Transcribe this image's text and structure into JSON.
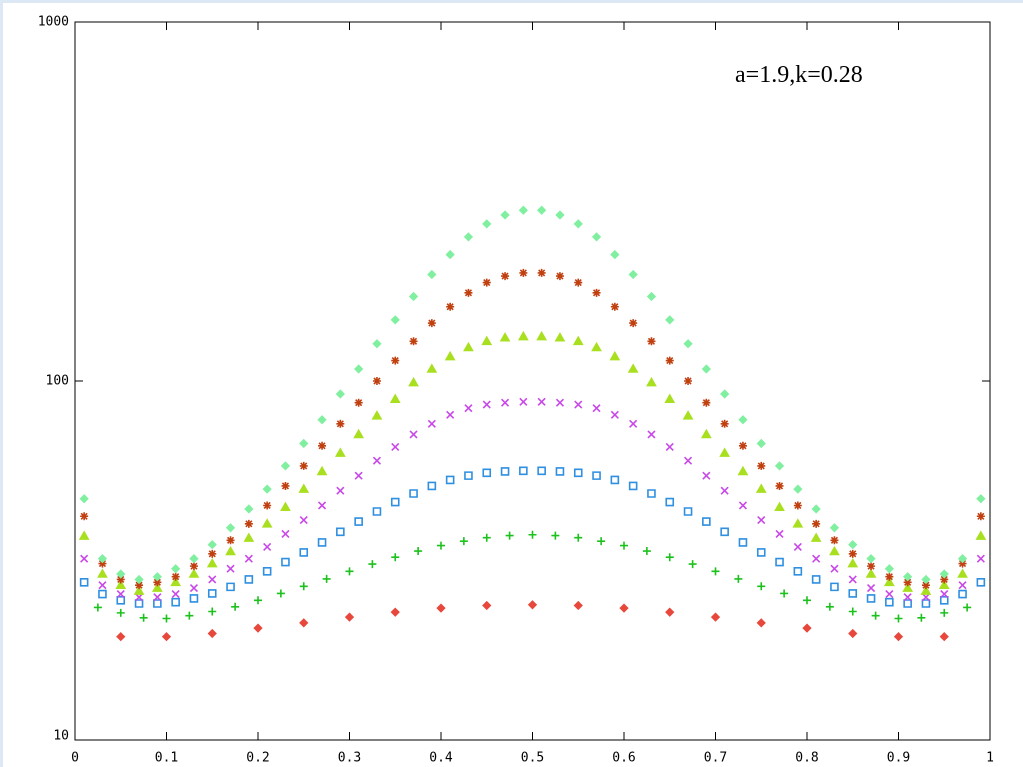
{
  "chart_data": {
    "type": "scatter",
    "annotation": "a=1.9,k=0.28",
    "xlim": [
      0,
      1
    ],
    "xticks": [
      0,
      0.1,
      0.2,
      0.3,
      0.4,
      0.5,
      0.6,
      0.7,
      0.8,
      0.9,
      1
    ],
    "ylim": [
      10,
      1000
    ],
    "yticks": [
      10,
      100,
      1000
    ],
    "log_y": true,
    "series": [
      {
        "color": "#e8483c",
        "marker": "diamond",
        "x": [
          0.05,
          0.1,
          0.15,
          0.2,
          0.25,
          0.3,
          0.35,
          0.4,
          0.45,
          0.5,
          0.55,
          0.6,
          0.65,
          0.7,
          0.75,
          0.8,
          0.85,
          0.9,
          0.95
        ],
        "values": [
          19.4,
          19.4,
          19.8,
          20.5,
          21.2,
          22,
          22.7,
          23.3,
          23.7,
          23.8,
          23.7,
          23.3,
          22.7,
          22,
          21.2,
          20.5,
          19.8,
          19.4,
          19.4
        ]
      },
      {
        "color": "#1cc21c",
        "marker": "plus",
        "x": [
          0.025,
          0.05,
          0.075,
          0.1,
          0.125,
          0.15,
          0.175,
          0.2,
          0.225,
          0.25,
          0.275,
          0.3,
          0.325,
          0.35,
          0.375,
          0.4,
          0.425,
          0.45,
          0.475,
          0.5,
          0.525,
          0.55,
          0.575,
          0.6,
          0.625,
          0.65,
          0.675,
          0.7,
          0.725,
          0.75,
          0.775,
          0.8,
          0.825,
          0.85,
          0.875,
          0.9,
          0.925,
          0.95,
          0.975
        ],
        "values": [
          23.4,
          22.6,
          21.9,
          21.8,
          22.2,
          22.8,
          23.5,
          24.5,
          25.6,
          26.8,
          28.1,
          29.5,
          30.9,
          32.3,
          33.6,
          34.8,
          35.8,
          36.6,
          37.1,
          37.3,
          37.1,
          36.6,
          35.8,
          34.8,
          33.6,
          32.3,
          30.9,
          29.5,
          28.1,
          26.8,
          25.6,
          24.5,
          23.5,
          22.8,
          22.2,
          21.8,
          21.9,
          22.6,
          23.4
        ]
      },
      {
        "color": "#2f8fe0",
        "marker": "square",
        "x": [
          0.01,
          0.03,
          0.05,
          0.07,
          0.09,
          0.11,
          0.13,
          0.15,
          0.17,
          0.19,
          0.21,
          0.23,
          0.25,
          0.27,
          0.29,
          0.31,
          0.33,
          0.35,
          0.37,
          0.39,
          0.41,
          0.43,
          0.45,
          0.47,
          0.49,
          0.51,
          0.53,
          0.55,
          0.57,
          0.59,
          0.61,
          0.63,
          0.65,
          0.67,
          0.69,
          0.71,
          0.73,
          0.75,
          0.77,
          0.79,
          0.81,
          0.83,
          0.85,
          0.87,
          0.89,
          0.91,
          0.93,
          0.95,
          0.97,
          0.99
        ],
        "values": [
          27.5,
          25.5,
          24.5,
          24,
          24,
          24.2,
          24.8,
          25.6,
          26.7,
          28,
          29.5,
          31.3,
          33.3,
          35.5,
          38,
          40.6,
          43.3,
          46,
          48.6,
          51,
          53,
          54.5,
          55.5,
          56,
          56.2,
          56.2,
          56,
          55.5,
          54.5,
          53,
          51,
          48.6,
          46,
          43.3,
          40.6,
          38,
          35.5,
          33.3,
          31.3,
          29.5,
          28,
          26.7,
          25.6,
          24.8,
          24.2,
          24,
          24,
          24.5,
          25.5,
          27.5
        ]
      },
      {
        "color": "#c848e8",
        "marker": "cross",
        "x": [
          0.01,
          0.03,
          0.05,
          0.07,
          0.09,
          0.11,
          0.13,
          0.15,
          0.17,
          0.19,
          0.21,
          0.23,
          0.25,
          0.27,
          0.29,
          0.31,
          0.33,
          0.35,
          0.37,
          0.39,
          0.41,
          0.43,
          0.45,
          0.47,
          0.49,
          0.51,
          0.53,
          0.55,
          0.57,
          0.59,
          0.61,
          0.63,
          0.65,
          0.67,
          0.69,
          0.71,
          0.73,
          0.75,
          0.77,
          0.79,
          0.81,
          0.83,
          0.85,
          0.87,
          0.89,
          0.91,
          0.93,
          0.95,
          0.97,
          0.99
        ],
        "values": [
          32,
          27,
          25.5,
          25,
          25,
          25.5,
          26.5,
          28,
          30,
          32,
          34.5,
          37.5,
          41,
          45,
          49.5,
          54.5,
          60,
          65.5,
          71,
          76,
          80.5,
          84,
          86,
          87,
          87.5,
          87.5,
          87,
          86,
          84,
          80.5,
          76,
          71,
          65.5,
          60,
          54.5,
          49.5,
          45,
          41,
          37.5,
          34.5,
          32,
          30,
          28,
          26.5,
          25.5,
          25,
          25,
          25.5,
          27,
          32
        ]
      },
      {
        "color": "#a8e020",
        "marker": "triangle",
        "x": [
          0.01,
          0.03,
          0.05,
          0.07,
          0.09,
          0.11,
          0.13,
          0.15,
          0.17,
          0.19,
          0.21,
          0.23,
          0.25,
          0.27,
          0.29,
          0.31,
          0.33,
          0.35,
          0.37,
          0.39,
          0.41,
          0.43,
          0.45,
          0.47,
          0.49,
          0.51,
          0.53,
          0.55,
          0.57,
          0.59,
          0.61,
          0.63,
          0.65,
          0.67,
          0.69,
          0.71,
          0.73,
          0.75,
          0.77,
          0.79,
          0.81,
          0.83,
          0.85,
          0.87,
          0.89,
          0.91,
          0.93,
          0.95,
          0.97,
          0.99
        ],
        "values": [
          37,
          29,
          27,
          26,
          26.5,
          27.5,
          29,
          31,
          33.5,
          36.5,
          40,
          44.5,
          50,
          56,
          63,
          71,
          80,
          89,
          99,
          108,
          117,
          124,
          129,
          132,
          133,
          133,
          132,
          129,
          124,
          117,
          108,
          99,
          89,
          80,
          71,
          63,
          56,
          50,
          44.5,
          40,
          36.5,
          33.5,
          31,
          29,
          27.5,
          26.5,
          26,
          27,
          29,
          37
        ]
      },
      {
        "color": "#c04010",
        "marker": "star",
        "x": [
          0.01,
          0.03,
          0.05,
          0.07,
          0.09,
          0.11,
          0.13,
          0.15,
          0.17,
          0.19,
          0.21,
          0.23,
          0.25,
          0.27,
          0.29,
          0.31,
          0.33,
          0.35,
          0.37,
          0.39,
          0.41,
          0.43,
          0.45,
          0.47,
          0.49,
          0.51,
          0.53,
          0.55,
          0.57,
          0.59,
          0.61,
          0.63,
          0.65,
          0.67,
          0.69,
          0.71,
          0.73,
          0.75,
          0.77,
          0.79,
          0.81,
          0.83,
          0.85,
          0.87,
          0.89,
          0.91,
          0.93,
          0.95,
          0.97,
          0.99
        ],
        "values": [
          42,
          31,
          28,
          27,
          27.5,
          28.5,
          30.5,
          33,
          36,
          40,
          45,
          51,
          58,
          66,
          76,
          87,
          100,
          114,
          129,
          145,
          161,
          176,
          188,
          196,
          200,
          200,
          196,
          188,
          176,
          161,
          145,
          129,
          114,
          100,
          87,
          76,
          66,
          58,
          51,
          45,
          40,
          36,
          33,
          30.5,
          28.5,
          27.5,
          27,
          28,
          31,
          42
        ]
      },
      {
        "color": "#80f0a0",
        "marker": "diamond",
        "x": [
          0.01,
          0.03,
          0.05,
          0.07,
          0.09,
          0.11,
          0.13,
          0.15,
          0.17,
          0.19,
          0.21,
          0.23,
          0.25,
          0.27,
          0.29,
          0.31,
          0.33,
          0.35,
          0.37,
          0.39,
          0.41,
          0.43,
          0.45,
          0.47,
          0.49,
          0.51,
          0.53,
          0.55,
          0.57,
          0.59,
          0.61,
          0.63,
          0.65,
          0.67,
          0.69,
          0.71,
          0.73,
          0.75,
          0.77,
          0.79,
          0.81,
          0.83,
          0.85,
          0.87,
          0.89,
          0.91,
          0.93,
          0.95,
          0.97,
          0.99
        ],
        "values": [
          47,
          32,
          29,
          28,
          28.5,
          30,
          32,
          35,
          39,
          44,
          50,
          58,
          67,
          78,
          92,
          108,
          127,
          148,
          172,
          198,
          225,
          252,
          274,
          290,
          299,
          299,
          290,
          274,
          252,
          225,
          198,
          172,
          148,
          127,
          108,
          92,
          78,
          67,
          58,
          50,
          44,
          39,
          35,
          32,
          30,
          28.5,
          28,
          29,
          32,
          47
        ]
      }
    ]
  }
}
